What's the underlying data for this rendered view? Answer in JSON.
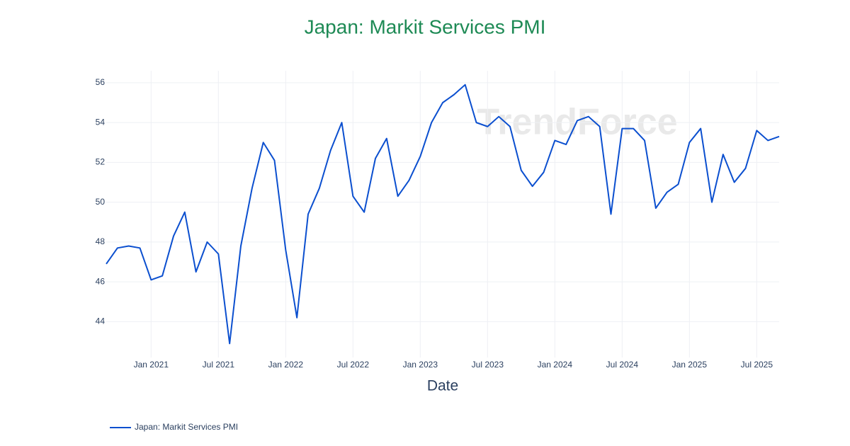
{
  "chart_data": {
    "type": "line",
    "title": "Japan: Markit Services PMI",
    "x_label": "Date",
    "watermark": "TrendForce",
    "x": [
      "2020-09",
      "2020-10",
      "2020-11",
      "2020-12",
      "2021-01",
      "2021-02",
      "2021-03",
      "2021-04",
      "2021-05",
      "2021-06",
      "2021-07",
      "2021-08",
      "2021-09",
      "2021-10",
      "2021-11",
      "2021-12",
      "2022-01",
      "2022-02",
      "2022-03",
      "2022-04",
      "2022-05",
      "2022-06",
      "2022-07",
      "2022-08",
      "2022-09",
      "2022-10",
      "2022-11",
      "2022-12",
      "2023-01",
      "2023-02",
      "2023-03",
      "2023-04",
      "2023-05",
      "2023-06",
      "2023-07",
      "2023-08",
      "2023-09",
      "2023-10",
      "2023-11",
      "2023-12",
      "2024-01",
      "2024-02",
      "2024-03",
      "2024-04",
      "2024-05",
      "2024-06",
      "2024-07",
      "2024-08",
      "2024-09",
      "2024-10",
      "2024-11",
      "2024-12",
      "2025-01",
      "2025-02",
      "2025-03",
      "2025-04",
      "2025-05",
      "2025-06",
      "2025-07",
      "2025-08",
      "2025-09"
    ],
    "series": [
      {
        "name": "Japan: Markit Services PMI",
        "color": "#0b4fcf",
        "values": [
          46.9,
          47.7,
          47.8,
          47.7,
          46.1,
          46.3,
          48.3,
          49.5,
          46.5,
          48.0,
          47.4,
          42.9,
          47.8,
          50.7,
          53.0,
          52.1,
          47.6,
          44.2,
          49.4,
          50.7,
          52.6,
          54.0,
          50.3,
          49.5,
          52.2,
          53.2,
          50.3,
          51.1,
          52.3,
          54.0,
          55.0,
          55.4,
          55.9,
          54.0,
          53.8,
          54.3,
          53.8,
          51.6,
          50.8,
          51.5,
          53.1,
          52.9,
          54.1,
          54.3,
          53.8,
          49.4,
          53.7,
          53.7,
          53.1,
          49.7,
          50.5,
          50.9,
          53.0,
          53.7,
          50.0,
          52.4,
          51.0,
          51.7,
          53.6,
          53.1,
          53.3
        ]
      }
    ],
    "xlim": [
      "2020-09",
      "2025-09"
    ],
    "xticks": [
      {
        "value": "2021-01",
        "label": "Jan 2021"
      },
      {
        "value": "2021-07",
        "label": "Jul 2021"
      },
      {
        "value": "2022-01",
        "label": "Jan 2022"
      },
      {
        "value": "2022-07",
        "label": "Jul 2022"
      },
      {
        "value": "2023-01",
        "label": "Jan 2023"
      },
      {
        "value": "2023-07",
        "label": "Jul 2023"
      },
      {
        "value": "2024-01",
        "label": "Jan 2024"
      },
      {
        "value": "2024-07",
        "label": "Jul 2024"
      },
      {
        "value": "2025-01",
        "label": "Jan 2025"
      },
      {
        "value": "2025-07",
        "label": "Jul 2025"
      }
    ],
    "ylim": [
      42.2,
      56.6
    ],
    "yticks": [
      44,
      46,
      48,
      50,
      52,
      54,
      56
    ],
    "grid": true,
    "legend": "bottom-left",
    "title_color": "#1e8a55"
  }
}
